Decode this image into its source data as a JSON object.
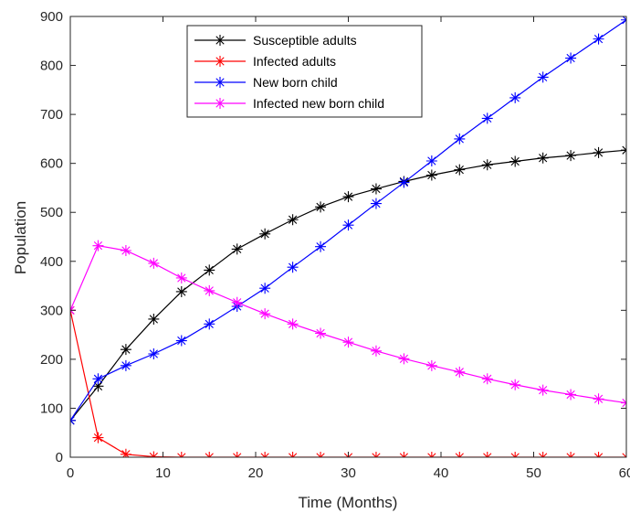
{
  "chart_data": {
    "type": "line",
    "title": "",
    "xlabel": "Time (Months)",
    "ylabel": "Population",
    "xlim": [
      0,
      60
    ],
    "ylim": [
      0,
      900
    ],
    "xticks": [
      0,
      10,
      20,
      30,
      40,
      50,
      60
    ],
    "xtick_labels": [
      "0",
      "10",
      "20",
      "30",
      "40",
      "50",
      "60"
    ],
    "yticks": [
      0,
      100,
      200,
      300,
      400,
      500,
      600,
      700,
      800,
      900
    ],
    "ytick_labels": [
      "0",
      "100",
      "200",
      "300",
      "400",
      "500",
      "600",
      "700",
      "800",
      "900"
    ],
    "grid": false,
    "legend_position": "top-center",
    "marker": "asterisk",
    "x": [
      0,
      3,
      6,
      9,
      12,
      15,
      18,
      21,
      24,
      27,
      30,
      33,
      36,
      39,
      42,
      45,
      48,
      51,
      54,
      57,
      60
    ],
    "series": [
      {
        "name": "Susceptible adults",
        "color": "#000000",
        "values": [
          75,
          145,
          220,
          282,
          338,
          382,
          425,
          456,
          485,
          511,
          532,
          548,
          563,
          576,
          587,
          597,
          604,
          611,
          616,
          622,
          627
        ]
      },
      {
        "name": "Infected adults",
        "color": "#ff0000",
        "values": [
          300,
          40,
          6,
          1,
          0,
          0,
          0,
          0,
          0,
          0,
          0,
          0,
          0,
          0,
          0,
          0,
          0,
          0,
          0,
          0,
          0
        ]
      },
      {
        "name": "New born child",
        "color": "#0000ff",
        "values": [
          75,
          160,
          187,
          211,
          238,
          272,
          308,
          345,
          388,
          430,
          474,
          518,
          561,
          605,
          650,
          692,
          734,
          776,
          815,
          854,
          893
        ]
      },
      {
        "name": "Infected new born child",
        "color": "#ff00ff",
        "values": [
          300,
          432,
          422,
          396,
          366,
          340,
          316,
          293,
          272,
          253,
          235,
          217,
          201,
          187,
          174,
          160,
          148,
          137,
          128,
          119,
          111
        ]
      }
    ]
  }
}
